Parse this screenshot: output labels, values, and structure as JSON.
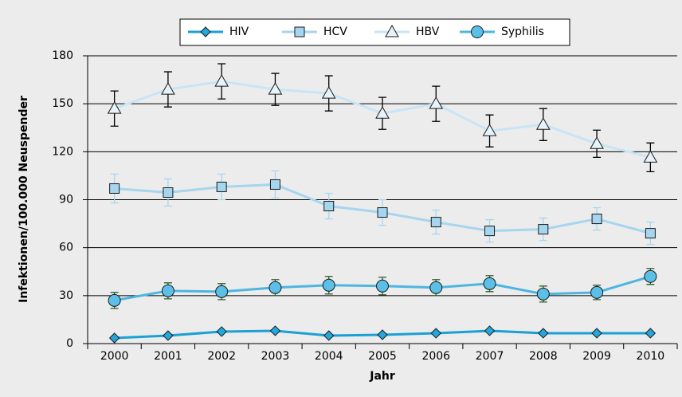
{
  "chart_data": {
    "type": "line",
    "categories": [
      "2000",
      "2001",
      "2002",
      "2003",
      "2004",
      "2005",
      "2006",
      "2007",
      "2008",
      "2009",
      "2010"
    ],
    "x_label": "Jahr",
    "y_label": "Infektionen/100.000 Neuspender",
    "ylim": [
      0,
      180
    ],
    "yticks": [
      0,
      30,
      60,
      90,
      120,
      150,
      180
    ],
    "grid": true,
    "series": [
      {
        "name": "HIV",
        "color": "#1aa0d6",
        "marker": "diamond",
        "marker_fill": "#22a8dc",
        "values": [
          3.5,
          5,
          7.5,
          8,
          5,
          5.5,
          6.5,
          8,
          6.5,
          6.5,
          6.5
        ]
      },
      {
        "name": "HCV",
        "color": "#a6d6ef",
        "marker": "square",
        "marker_fill": "#a6d6ef",
        "error_color": "#a6d6ef",
        "values": [
          97,
          94.5,
          98,
          99.5,
          86,
          82,
          76,
          70.5,
          71.5,
          78,
          69
        ],
        "errors": [
          9,
          8.5,
          8,
          8.5,
          8,
          8,
          7.5,
          7,
          7,
          7,
          7
        ]
      },
      {
        "name": "HBV",
        "color": "#c8e5f5",
        "marker": "triangle",
        "marker_fill": "#e6f3fa",
        "error_color": "#000000",
        "values": [
          147,
          159,
          164,
          159,
          156.5,
          144,
          150,
          133,
          137,
          125,
          116.5
        ],
        "errors": [
          11,
          11,
          11,
          10,
          11,
          10,
          11,
          10,
          10,
          8.5,
          9
        ]
      },
      {
        "name": "Syphilis",
        "color": "#4cb6e0",
        "marker": "circle",
        "marker_fill": "#5cbfe8",
        "error_color": "#2e5e2e",
        "values": [
          27,
          33,
          32.5,
          35,
          36.5,
          36,
          35,
          37.5,
          31,
          32,
          42
        ],
        "errors": [
          5,
          5,
          5,
          5,
          5.5,
          5.5,
          5,
          5,
          5,
          4.5,
          5
        ]
      }
    ]
  }
}
